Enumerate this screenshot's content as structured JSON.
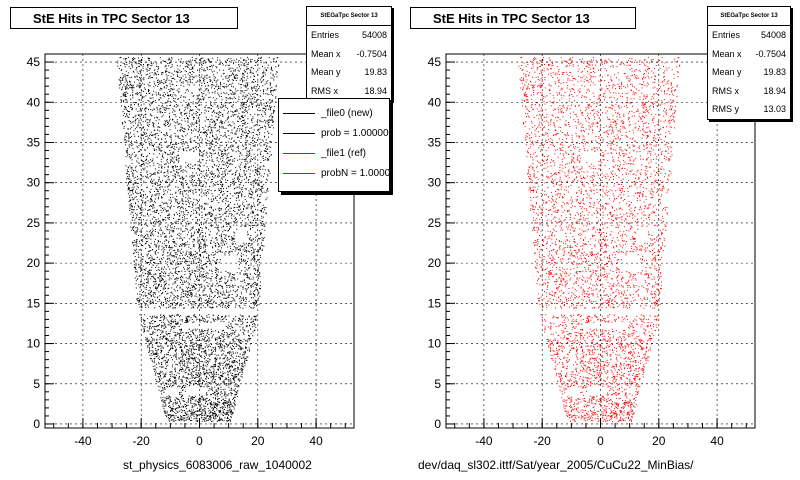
{
  "colors": {
    "file0": "#000000",
    "file1": "#ff0000"
  },
  "chart_data": [
    {
      "type": "scatter",
      "title": "StE Hits in TPC Sector 13",
      "xlabel": "st_physics_6083006_raw_1040002",
      "ylabel": "",
      "xlim": [
        -53,
        53
      ],
      "ylim": [
        -0.5,
        46
      ],
      "xticks": [
        -40,
        -20,
        0,
        20,
        40
      ],
      "yticks": [
        0,
        5,
        10,
        15,
        20,
        25,
        30,
        35,
        40,
        45
      ],
      "grid": true,
      "color": "#000000",
      "point_count": 54008,
      "stats_title": "StEGaTpc Sector 13",
      "stats": [
        {
          "label": "Entries",
          "value": "54008"
        },
        {
          "label": "Mean x",
          "value": "-0.7504"
        },
        {
          "label": "Mean y",
          "value": "19.83"
        },
        {
          "label": "RMS x",
          "value": "18.94"
        }
      ],
      "legend": [
        {
          "label": "_file0 (new)",
          "color": "#000000"
        },
        {
          "label": "prob = 1.000000",
          "color": "#000000"
        },
        {
          "label": "_file1 (ref)",
          "color": "#ff0000"
        },
        {
          "label": "probN = 1.000000",
          "color": "#ff0000"
        }
      ],
      "footer_prefix": "[",
      "footer_suffix": "]"
    },
    {
      "type": "scatter",
      "title": "StE Hits in TPC Sector 13",
      "xlabel": "dev/daq_sl302.ittf/Sat/year_2005/CuCu22_MinBias/",
      "ylabel": "",
      "xlim": [
        -53,
        53
      ],
      "ylim": [
        -0.5,
        46
      ],
      "xticks": [
        -40,
        -20,
        0,
        20,
        40
      ],
      "yticks": [
        0,
        5,
        10,
        15,
        20,
        25,
        30,
        35,
        40,
        45
      ],
      "grid": true,
      "color": "#ff0000",
      "point_count": 54008,
      "stats_title": "StEGaTpc Sector 13",
      "stats": [
        {
          "label": "Entries",
          "value": "54008"
        },
        {
          "label": "Mean x",
          "value": "-0.7504"
        },
        {
          "label": "Mean y",
          "value": "19.83"
        },
        {
          "label": "RMS x",
          "value": "18.94"
        },
        {
          "label": "RMS y",
          "value": "13.03"
        }
      ],
      "footer_prefix": "[",
      "footer_suffix": "]"
    }
  ]
}
